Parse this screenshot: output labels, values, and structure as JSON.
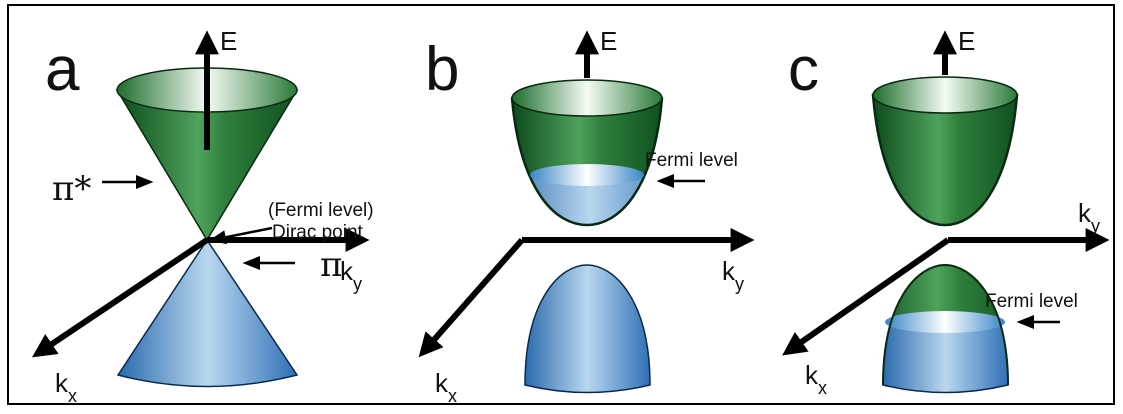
{
  "panels": [
    {
      "label": "a",
      "energy": "E",
      "ky": {
        "base": "k",
        "sub": "y"
      },
      "kx": {
        "base": "k",
        "sub": "x"
      },
      "upper_band": "π*",
      "lower_band": "π",
      "fermi": "(Fermi level)",
      "dirac": "Dirac point"
    },
    {
      "label": "b",
      "energy": "E",
      "ky": {
        "base": "k",
        "sub": "y"
      },
      "kx": {
        "base": "k",
        "sub": "x"
      },
      "fermi": "Fermi level"
    },
    {
      "label": "c",
      "energy": "E",
      "ky": {
        "base": "k",
        "sub": "y"
      },
      "kx": {
        "base": "k",
        "sub": "x"
      },
      "fermi": "Fermi level"
    }
  ]
}
